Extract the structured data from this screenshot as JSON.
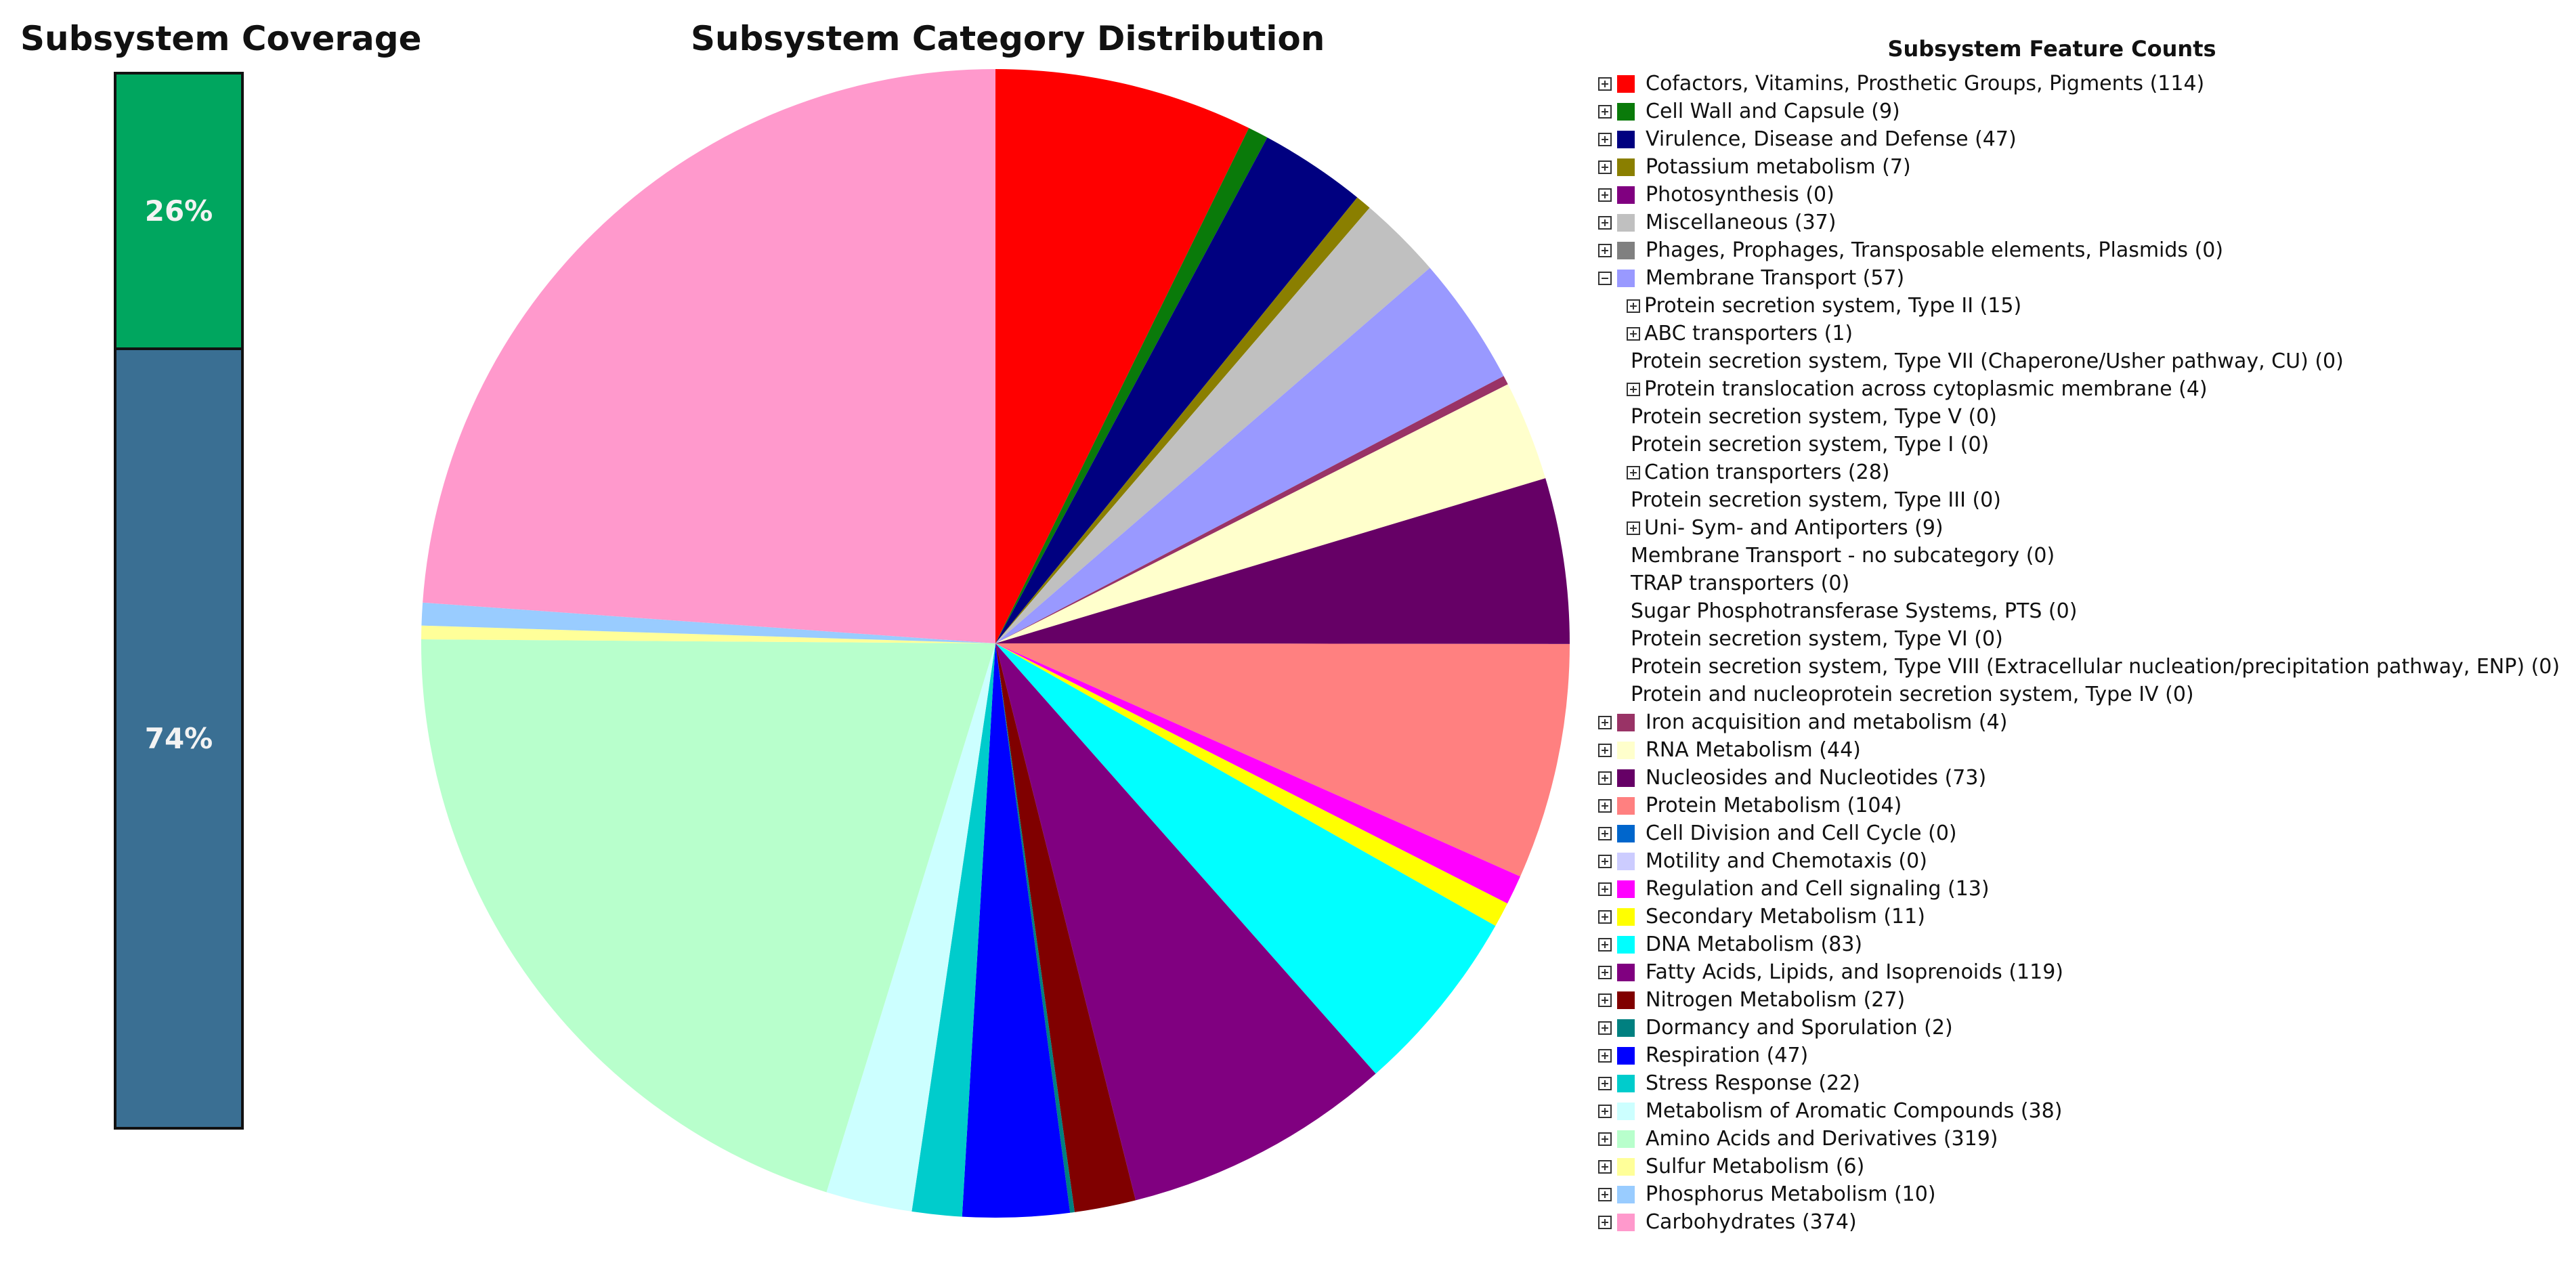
{
  "coverage": {
    "title": "Subsystem Coverage",
    "segments": [
      {
        "label": "26%",
        "fraction": 0.26,
        "color": "#00a65f"
      },
      {
        "label": "74%",
        "fraction": 0.74,
        "color": "#3a6f93"
      }
    ]
  },
  "chart_data": {
    "type": "pie",
    "title": "Subsystem Category Distribution",
    "slices": [
      {
        "name": "Cofactors, Vitamins, Prosthetic Groups, Pigments",
        "value": 114,
        "color": "#ff0000"
      },
      {
        "name": "Cell Wall and Capsule",
        "value": 9,
        "color": "#0a7a0a"
      },
      {
        "name": "Virulence, Disease and Defense",
        "value": 47,
        "color": "#000080"
      },
      {
        "name": "Potassium metabolism",
        "value": 7,
        "color": "#8a7f00"
      },
      {
        "name": "Photosynthesis",
        "value": 0,
        "color": "#800080"
      },
      {
        "name": "Miscellaneous",
        "value": 37,
        "color": "#c0c0c0"
      },
      {
        "name": "Phages, Prophages, Transposable elements, Plasmids",
        "value": 0,
        "color": "#808080"
      },
      {
        "name": "Membrane Transport",
        "value": 57,
        "color": "#9999ff"
      },
      {
        "name": "Iron acquisition and metabolism",
        "value": 4,
        "color": "#993366"
      },
      {
        "name": "RNA Metabolism",
        "value": 44,
        "color": "#ffffcc"
      },
      {
        "name": "Nucleosides and Nucleotides",
        "value": 73,
        "color": "#660066"
      },
      {
        "name": "Protein Metabolism",
        "value": 104,
        "color": "#ff8080"
      },
      {
        "name": "Cell Division and Cell Cycle",
        "value": 0,
        "color": "#0066cc"
      },
      {
        "name": "Motility and Chemotaxis",
        "value": 0,
        "color": "#ccccff"
      },
      {
        "name": "Regulation and Cell signaling",
        "value": 13,
        "color": "#ff00ff"
      },
      {
        "name": "Secondary Metabolism",
        "value": 11,
        "color": "#ffff00"
      },
      {
        "name": "DNA Metabolism",
        "value": 83,
        "color": "#00ffff"
      },
      {
        "name": "Fatty Acids, Lipids, and Isoprenoids",
        "value": 119,
        "color": "#800080"
      },
      {
        "name": "Nitrogen Metabolism",
        "value": 27,
        "color": "#800000"
      },
      {
        "name": "Dormancy and Sporulation",
        "value": 2,
        "color": "#008080"
      },
      {
        "name": "Respiration",
        "value": 47,
        "color": "#0000ff"
      },
      {
        "name": "Stress Response",
        "value": 22,
        "color": "#00cccc"
      },
      {
        "name": "Metabolism of Aromatic Compounds",
        "value": 38,
        "color": "#ccffff"
      },
      {
        "name": "Amino Acids and Derivatives",
        "value": 319,
        "color": "#b8ffcc"
      },
      {
        "name": "Sulfur Metabolism",
        "value": 6,
        "color": "#ffff99"
      },
      {
        "name": "Phosphorus Metabolism",
        "value": 10,
        "color": "#99ccff"
      },
      {
        "name": "Carbohydrates",
        "value": 374,
        "color": "#ff99cc"
      }
    ]
  },
  "legend": {
    "title": "Subsystem Feature Counts",
    "rows": [
      {
        "kind": "cat",
        "expander": "plus",
        "label": "Cofactors, Vitamins, Prosthetic Groups, Pigments (114)",
        "color": "#ff0000"
      },
      {
        "kind": "cat",
        "expander": "plus",
        "label": "Cell Wall and Capsule (9)",
        "color": "#0a7a0a"
      },
      {
        "kind": "cat",
        "expander": "plus",
        "label": "Virulence, Disease and Defense (47)",
        "color": "#000080"
      },
      {
        "kind": "cat",
        "expander": "plus",
        "label": "Potassium metabolism (7)",
        "color": "#8a7f00"
      },
      {
        "kind": "cat",
        "expander": "plus",
        "label": "Photosynthesis (0)",
        "color": "#800080"
      },
      {
        "kind": "cat",
        "expander": "plus",
        "label": "Miscellaneous (37)",
        "color": "#c0c0c0"
      },
      {
        "kind": "cat",
        "expander": "plus",
        "label": "Phages, Prophages, Transposable elements, Plasmids (0)",
        "color": "#808080"
      },
      {
        "kind": "cat",
        "expander": "minus",
        "label": "Membrane Transport (57)",
        "color": "#9999ff"
      },
      {
        "kind": "sub",
        "expander": "plus",
        "label": "Protein secretion system, Type II (15)"
      },
      {
        "kind": "sub",
        "expander": "plus",
        "label": "ABC transporters (1)"
      },
      {
        "kind": "leaf",
        "label": "Protein secretion system, Type VII (Chaperone/Usher pathway, CU) (0)"
      },
      {
        "kind": "sub",
        "expander": "plus",
        "label": "Protein translocation across cytoplasmic membrane (4)"
      },
      {
        "kind": "leaf",
        "label": "Protein secretion system, Type V (0)"
      },
      {
        "kind": "leaf",
        "label": "Protein secretion system, Type I (0)"
      },
      {
        "kind": "sub",
        "expander": "plus",
        "label": "Cation transporters (28)"
      },
      {
        "kind": "leaf",
        "label": "Protein secretion system, Type III (0)"
      },
      {
        "kind": "sub",
        "expander": "plus",
        "label": "Uni- Sym- and Antiporters (9)"
      },
      {
        "kind": "leaf",
        "label": "Membrane Transport - no subcategory (0)"
      },
      {
        "kind": "leaf",
        "label": "TRAP transporters (0)"
      },
      {
        "kind": "leaf",
        "label": "Sugar Phosphotransferase Systems, PTS (0)"
      },
      {
        "kind": "leaf",
        "label": "Protein secretion system, Type VI (0)"
      },
      {
        "kind": "leaf",
        "label": "Protein secretion system, Type VIII (Extracellular nucleation/precipitation pathway, ENP) (0)"
      },
      {
        "kind": "leaf",
        "label": "Protein and nucleoprotein secretion system, Type IV (0)"
      },
      {
        "kind": "cat",
        "expander": "plus",
        "label": "Iron acquisition and metabolism (4)",
        "color": "#993366"
      },
      {
        "kind": "cat",
        "expander": "plus",
        "label": "RNA Metabolism (44)",
        "color": "#ffffcc"
      },
      {
        "kind": "cat",
        "expander": "plus",
        "label": "Nucleosides and Nucleotides (73)",
        "color": "#660066"
      },
      {
        "kind": "cat",
        "expander": "plus",
        "label": "Protein Metabolism (104)",
        "color": "#ff8080"
      },
      {
        "kind": "cat",
        "expander": "plus",
        "label": "Cell Division and Cell Cycle (0)",
        "color": "#0066cc"
      },
      {
        "kind": "cat",
        "expander": "plus",
        "label": "Motility and Chemotaxis (0)",
        "color": "#ccccff"
      },
      {
        "kind": "cat",
        "expander": "plus",
        "label": "Regulation and Cell signaling (13)",
        "color": "#ff00ff"
      },
      {
        "kind": "cat",
        "expander": "plus",
        "label": "Secondary Metabolism (11)",
        "color": "#ffff00"
      },
      {
        "kind": "cat",
        "expander": "plus",
        "label": "DNA Metabolism (83)",
        "color": "#00ffff"
      },
      {
        "kind": "cat",
        "expander": "plus",
        "label": "Fatty Acids, Lipids, and Isoprenoids (119)",
        "color": "#800080"
      },
      {
        "kind": "cat",
        "expander": "plus",
        "label": "Nitrogen Metabolism (27)",
        "color": "#800000"
      },
      {
        "kind": "cat",
        "expander": "plus",
        "label": "Dormancy and Sporulation (2)",
        "color": "#008080"
      },
      {
        "kind": "cat",
        "expander": "plus",
        "label": "Respiration (47)",
        "color": "#0000ff"
      },
      {
        "kind": "cat",
        "expander": "plus",
        "label": "Stress Response (22)",
        "color": "#00cccc"
      },
      {
        "kind": "cat",
        "expander": "plus",
        "label": "Metabolism of Aromatic Compounds (38)",
        "color": "#ccffff"
      },
      {
        "kind": "cat",
        "expander": "plus",
        "label": "Amino Acids and Derivatives (319)",
        "color": "#b8ffcc"
      },
      {
        "kind": "cat",
        "expander": "plus",
        "label": "Sulfur Metabolism (6)",
        "color": "#ffff99"
      },
      {
        "kind": "cat",
        "expander": "plus",
        "label": "Phosphorus Metabolism (10)",
        "color": "#99ccff"
      },
      {
        "kind": "cat",
        "expander": "plus",
        "label": "Carbohydrates (374)",
        "color": "#ff99cc"
      }
    ]
  }
}
